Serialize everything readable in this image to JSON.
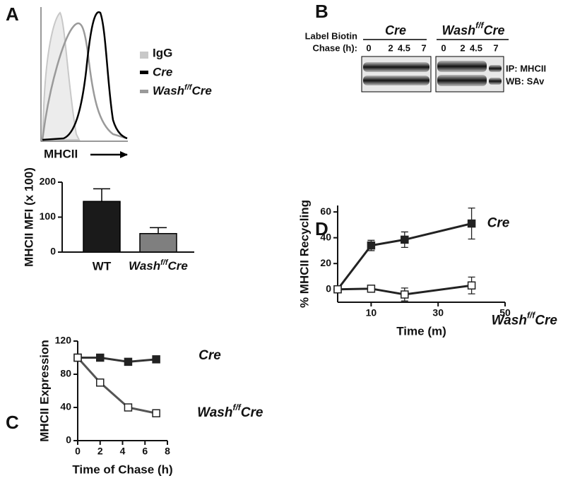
{
  "figure": {
    "panels": [
      "A",
      "B",
      "C",
      "D"
    ]
  },
  "histogram": {
    "legend": [
      "IgG",
      "Cre",
      [
        "Wash",
        "f/f",
        "Cre"
      ]
    ],
    "italic": [
      false,
      true,
      true
    ],
    "colors": [
      "#c8c8c8",
      "#000000",
      "#9a9a9a"
    ],
    "xlabel": "MHCII"
  },
  "blot": {
    "label_row": "Label Biotin",
    "chase_row": "Chase (h):",
    "groups": [
      "Cre",
      [
        "Wash",
        "f/f",
        "Cre"
      ]
    ],
    "lanes": [
      "0",
      "2",
      "4.5",
      "7"
    ],
    "side_labels": [
      "IP: MHCII",
      "WB: SAv"
    ]
  },
  "chart_data": [
    {
      "type": "bar",
      "ylabel": "MHCII MFI (x 100)",
      "categories": [
        "WT",
        [
          "Wash",
          "f/f",
          "Cre"
        ]
      ],
      "values": [
        145,
        53
      ],
      "errors": [
        36,
        17
      ],
      "colors": [
        "#1a1a1a",
        "#7f7f7f"
      ],
      "ylim": [
        0,
        200
      ],
      "yticks": [
        0,
        100,
        200
      ]
    },
    {
      "type": "line",
      "xlabel": "Time of Chase (h)",
      "ylabel": "MHCII Expression",
      "x": [
        0,
        2,
        4.5,
        7
      ],
      "xlim": [
        0,
        8
      ],
      "xticks": [
        0,
        2,
        4,
        6,
        8
      ],
      "ylim": [
        0,
        120
      ],
      "yticks": [
        0,
        40,
        80,
        120
      ],
      "series": [
        {
          "name": "Cre",
          "color": "#333333",
          "marker": "filled",
          "values": [
            100,
            100,
            95,
            98
          ]
        },
        {
          "name": [
            "Wash",
            "f/f",
            "Cre"
          ],
          "color": "#555555",
          "marker": "open",
          "values": [
            100,
            70,
            40,
            33
          ]
        }
      ]
    },
    {
      "type": "line",
      "xlabel": "Time (m)",
      "ylabel": "% MHCII Recycling",
      "x": [
        0,
        10,
        20,
        40
      ],
      "xlim": [
        0,
        50
      ],
      "xticks": [
        10,
        30,
        50
      ],
      "ylim": [
        -10,
        65
      ],
      "yticks": [
        0,
        20,
        40,
        60
      ],
      "series": [
        {
          "name": "Cre",
          "color": "#222222",
          "marker": "filled",
          "values": [
            0,
            34,
            38.5,
            51
          ],
          "errors": [
            0,
            4,
            6,
            12
          ]
        },
        {
          "name": [
            "Wash",
            "f/f",
            "Cre"
          ],
          "color": "#222222",
          "marker": "open",
          "values": [
            0,
            0.5,
            -4,
            3
          ],
          "errors": [
            0,
            2,
            5,
            6.5
          ]
        }
      ]
    }
  ]
}
